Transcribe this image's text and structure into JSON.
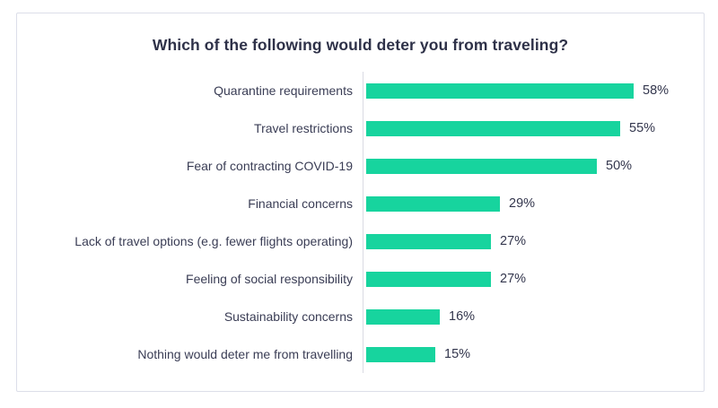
{
  "title": "Which of the following would deter you from traveling?",
  "chart_data": {
    "type": "bar",
    "orientation": "horizontal",
    "title": "Which of the following would deter you from traveling?",
    "categories": [
      "Quarantine requirements",
      "Travel restrictions",
      "Fear of contracting COVID-19",
      "Financial concerns",
      "Lack of travel options (e.g. fewer flights operating)",
      "Feeling of social responsibility",
      "Sustainability concerns",
      "Nothing would deter me from travelling"
    ],
    "values": [
      58,
      55,
      50,
      29,
      27,
      27,
      16,
      15
    ],
    "value_suffix": "%",
    "value_labels_position": "outside-end",
    "xlabel": "",
    "ylabel": "",
    "xlim": [
      0,
      62
    ],
    "grid": false,
    "legend": false
  },
  "colors": {
    "bar": "#17d49e",
    "title_text": "#2e3148",
    "label_text": "#3a3d55",
    "value_text": "#33364d",
    "axis_line": "#d9dae3",
    "card_border": "#dcdee9",
    "background": "#ffffff"
  }
}
